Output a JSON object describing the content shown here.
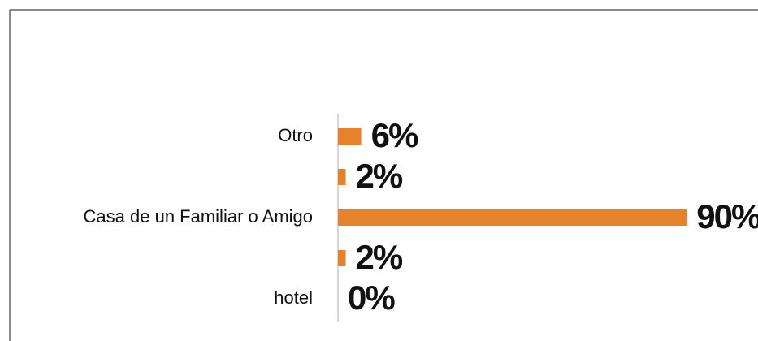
{
  "chart_data": {
    "type": "bar",
    "orientation": "horizontal",
    "categories": [
      "Otro",
      null,
      "Casa de un Familiar o Amigo",
      null,
      "hotel"
    ],
    "values": [
      6,
      2,
      90,
      2,
      0
    ],
    "value_labels": [
      "6%",
      "2%",
      "90%",
      "2%",
      "0%"
    ],
    "color": "#e8822a"
  }
}
